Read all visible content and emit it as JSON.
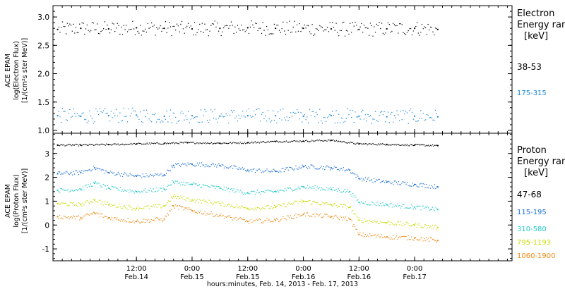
{
  "chart_data": [
    {
      "type": "scatter",
      "panel": "electron",
      "ylabel": [
        "ACE EPAM",
        "log(Electron Flux)",
        "[1/(cm²s ster MeV)]"
      ],
      "ylim": [
        0.95,
        3.2
      ],
      "yticks": [
        "1.0",
        "1.5",
        "2.0",
        "2.5",
        "3.0"
      ],
      "ytick_values": [
        1.0,
        1.5,
        2.0,
        2.5,
        3.0
      ],
      "legend_title": [
        "Electron",
        "Energy ranges",
        "[keV]"
      ],
      "legend_placement": "right",
      "x_range": [
        "2013-02-13T18:00",
        "2013-02-17T21:00"
      ],
      "series": [
        {
          "name": "38-53",
          "color": "#000000",
          "x": [
            "2013-02-13T19:00",
            "2013-02-14T00:00",
            "2013-02-14T06:00",
            "2013-02-14T12:00",
            "2013-02-14T18:00",
            "2013-02-15T00:00",
            "2013-02-15T06:00",
            "2013-02-15T12:00",
            "2013-02-15T18:00",
            "2013-02-16T00:00",
            "2013-02-16T06:00",
            "2013-02-16T12:00",
            "2013-02-16T18:00",
            "2013-02-17T00:00",
            "2013-02-17T05:00"
          ],
          "values": [
            2.78,
            2.8,
            2.79,
            2.81,
            2.8,
            2.79,
            2.8,
            2.81,
            2.8,
            2.8,
            2.79,
            2.78,
            2.79,
            2.8,
            2.78
          ]
        },
        {
          "name": "175-315",
          "color": "#1a86d6",
          "x": [
            "2013-02-13T19:00",
            "2013-02-14T00:00",
            "2013-02-14T06:00",
            "2013-02-14T12:00",
            "2013-02-14T18:00",
            "2013-02-15T00:00",
            "2013-02-15T06:00",
            "2013-02-15T12:00",
            "2013-02-15T18:00",
            "2013-02-16T00:00",
            "2013-02-16T06:00",
            "2013-02-16T12:00",
            "2013-02-16T18:00",
            "2013-02-17T00:00",
            "2013-02-17T05:00"
          ],
          "values": [
            1.26,
            1.25,
            1.26,
            1.27,
            1.25,
            1.26,
            1.25,
            1.26,
            1.26,
            1.25,
            1.26,
            1.25,
            1.24,
            1.25,
            1.24
          ]
        }
      ]
    },
    {
      "type": "scatter",
      "panel": "proton",
      "ylabel": [
        "ACE EPAM",
        "log(Proton Flux)",
        "[1/(cm²s ster MeV)]"
      ],
      "ylim": [
        -1.5,
        3.85
      ],
      "yticks": [
        "-1",
        "0",
        "1",
        "2",
        "3"
      ],
      "ytick_values": [
        -1,
        0,
        1,
        2,
        3
      ],
      "xlabel": "hours:minutes, Feb. 14, 2013 - Feb. 17, 2013",
      "xticks": [
        {
          "time": "2013-02-14T12:00",
          "top": "12:00",
          "bottom": "Feb.14"
        },
        {
          "time": "2013-02-15T00:00",
          "top": "0:00",
          "bottom": "Feb.15"
        },
        {
          "time": "2013-02-15T12:00",
          "top": "12:00",
          "bottom": "Feb.15"
        },
        {
          "time": "2013-02-16T00:00",
          "top": "0:00",
          "bottom": "Feb.16"
        },
        {
          "time": "2013-02-16T12:00",
          "top": "12:00",
          "bottom": "Feb.16"
        },
        {
          "time": "2013-02-17T00:00",
          "top": "0:00",
          "bottom": "Feb.17"
        }
      ],
      "legend_title": [
        "Proton",
        "Energy ranges",
        "[keV]"
      ],
      "legend_placement": "right",
      "x_range": [
        "2013-02-13T18:00",
        "2013-02-17T21:00"
      ],
      "series": [
        {
          "name": "47-68",
          "color": "#000000",
          "x": [
            "2013-02-13T19:00",
            "2013-02-14T00:00",
            "2013-02-14T06:00",
            "2013-02-14T12:00",
            "2013-02-14T18:00",
            "2013-02-14T23:00",
            "2013-02-15T06:00",
            "2013-02-15T12:00",
            "2013-02-15T18:00",
            "2013-02-16T00:00",
            "2013-02-16T06:00",
            "2013-02-16T12:00",
            "2013-02-16T18:00",
            "2013-02-17T00:00",
            "2013-02-17T05:00"
          ],
          "values": [
            3.35,
            3.35,
            3.37,
            3.4,
            3.42,
            3.45,
            3.43,
            3.45,
            3.5,
            3.52,
            3.55,
            3.4,
            3.38,
            3.35,
            3.33
          ]
        },
        {
          "name": "115-195",
          "color": "#1a6fd6",
          "x": [
            "2013-02-13T19:00",
            "2013-02-14T00:00",
            "2013-02-14T03:00",
            "2013-02-14T06:00",
            "2013-02-14T12:00",
            "2013-02-14T18:00",
            "2013-02-14T20:00",
            "2013-02-15T00:00",
            "2013-02-15T06:00",
            "2013-02-15T12:00",
            "2013-02-15T18:00",
            "2013-02-16T00:00",
            "2013-02-16T06:00",
            "2013-02-16T10:00",
            "2013-02-16T12:00",
            "2013-02-16T18:00",
            "2013-02-17T00:00",
            "2013-02-17T05:00"
          ],
          "values": [
            2.15,
            2.2,
            2.4,
            2.2,
            2.05,
            2.1,
            2.5,
            2.55,
            2.5,
            2.3,
            2.25,
            2.45,
            2.4,
            2.3,
            1.95,
            1.8,
            1.7,
            1.6
          ]
        },
        {
          "name": "310-580",
          "color": "#22c9c9",
          "x": [
            "2013-02-13T19:00",
            "2013-02-14T00:00",
            "2013-02-14T03:00",
            "2013-02-14T06:00",
            "2013-02-14T12:00",
            "2013-02-14T18:00",
            "2013-02-14T20:00",
            "2013-02-15T00:00",
            "2013-02-15T06:00",
            "2013-02-15T12:00",
            "2013-02-15T18:00",
            "2013-02-16T00:00",
            "2013-02-16T06:00",
            "2013-02-16T10:00",
            "2013-02-16T12:00",
            "2013-02-16T18:00",
            "2013-02-17T00:00",
            "2013-02-17T05:00"
          ],
          "values": [
            1.45,
            1.5,
            1.75,
            1.55,
            1.4,
            1.5,
            1.8,
            1.7,
            1.55,
            1.35,
            1.4,
            1.6,
            1.5,
            1.4,
            0.95,
            0.85,
            0.75,
            0.65
          ]
        },
        {
          "name": "795-1193",
          "color": "#c8dc00",
          "x": [
            "2013-02-13T19:00",
            "2013-02-14T00:00",
            "2013-02-14T03:00",
            "2013-02-14T06:00",
            "2013-02-14T12:00",
            "2013-02-14T18:00",
            "2013-02-14T20:00",
            "2013-02-15T00:00",
            "2013-02-15T06:00",
            "2013-02-15T12:00",
            "2013-02-15T18:00",
            "2013-02-16T00:00",
            "2013-02-16T06:00",
            "2013-02-16T10:00",
            "2013-02-16T12:00",
            "2013-02-16T18:00",
            "2013-02-17T00:00",
            "2013-02-17T05:00"
          ],
          "values": [
            0.9,
            0.85,
            1.05,
            0.85,
            0.7,
            0.8,
            1.2,
            1.05,
            0.9,
            0.7,
            0.75,
            1.0,
            0.85,
            0.75,
            0.2,
            0.1,
            0.0,
            -0.1
          ]
        },
        {
          "name": "1060-1900",
          "color": "#f08a14",
          "x": [
            "2013-02-13T19:00",
            "2013-02-14T00:00",
            "2013-02-14T03:00",
            "2013-02-14T06:00",
            "2013-02-14T12:00",
            "2013-02-14T18:00",
            "2013-02-14T20:00",
            "2013-02-15T00:00",
            "2013-02-15T06:00",
            "2013-02-15T12:00",
            "2013-02-15T18:00",
            "2013-02-16T00:00",
            "2013-02-16T06:00",
            "2013-02-16T10:00",
            "2013-02-16T12:00",
            "2013-02-16T18:00",
            "2013-02-17T00:00",
            "2013-02-17T05:00"
          ],
          "values": [
            0.35,
            0.3,
            0.5,
            0.3,
            0.15,
            0.25,
            0.8,
            0.6,
            0.4,
            0.15,
            0.2,
            0.45,
            0.35,
            0.25,
            -0.4,
            -0.5,
            -0.55,
            -0.65
          ]
        }
      ]
    }
  ]
}
